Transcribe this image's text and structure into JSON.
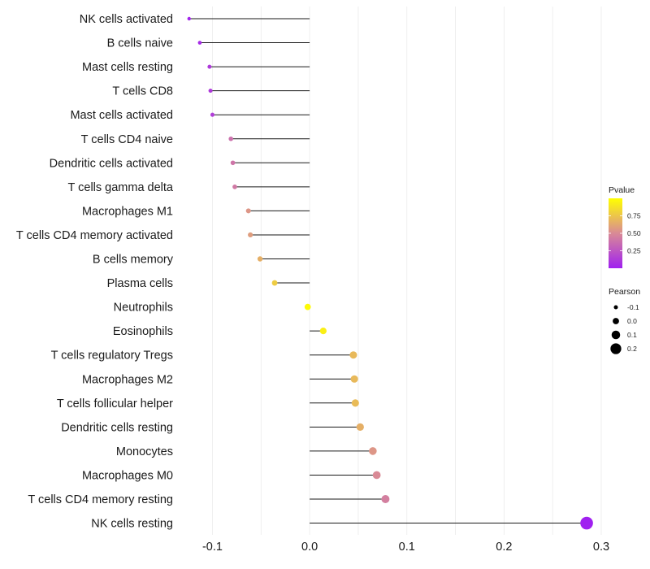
{
  "chart_data": {
    "type": "lollipop",
    "categories": [
      "NK cells activated",
      "B cells naive",
      "Mast cells resting",
      "T cells CD8",
      "Mast cells activated",
      "T cells CD4 naive",
      "Dendritic cells activated",
      "T cells gamma delta",
      "Macrophages M1",
      "T cells CD4 memory activated",
      "B cells memory",
      "Plasma cells",
      "Neutrophils",
      "Eosinophils",
      "T cells regulatory  Tregs ",
      "Macrophages M2",
      "T cells follicular helper",
      "Dendritic cells resting",
      "Monocytes",
      "Macrophages M0",
      "T cells CD4 memory resting",
      "NK cells resting"
    ],
    "values": [
      -0.124,
      -0.113,
      -0.103,
      -0.102,
      -0.1,
      -0.081,
      -0.079,
      -0.077,
      -0.063,
      -0.061,
      -0.051,
      -0.036,
      -0.002,
      0.014,
      0.045,
      0.046,
      0.047,
      0.052,
      0.065,
      0.069,
      0.078,
      0.285
    ],
    "pvalues": [
      0.02,
      0.05,
      0.12,
      0.12,
      0.14,
      0.38,
      0.4,
      0.42,
      0.55,
      0.58,
      0.66,
      0.78,
      0.98,
      0.93,
      0.7,
      0.7,
      0.71,
      0.66,
      0.55,
      0.5,
      0.45,
      0.0
    ],
    "xlim": [
      -0.133,
      0.3
    ],
    "xticks": [
      -0.1,
      0.0,
      0.1,
      0.2,
      0.3
    ],
    "xtick_labels": [
      "-0.1",
      "0.0",
      "0.1",
      "0.2",
      "0.3"
    ],
    "baseline": 0,
    "legend_color": {
      "title": "Pvalue",
      "range": [
        0,
        1
      ],
      "ticks": [
        0.25,
        0.5,
        0.75
      ],
      "tick_labels": [
        "0.25",
        "0.50",
        "0.75"
      ],
      "low_color": "#a020f0",
      "mid_color": "#d98a96",
      "high_color": "#ffff00"
    },
    "legend_size": {
      "title": "Pearson",
      "values": [
        -0.1,
        0.0,
        0.1,
        0.2
      ],
      "labels": [
        "-0.1",
        "0.0",
        "0.1",
        "0.2"
      ]
    }
  },
  "colors": {
    "grid": "#ebebeb",
    "stem": "#1a1a1a",
    "legend_dot": "#000000"
  }
}
